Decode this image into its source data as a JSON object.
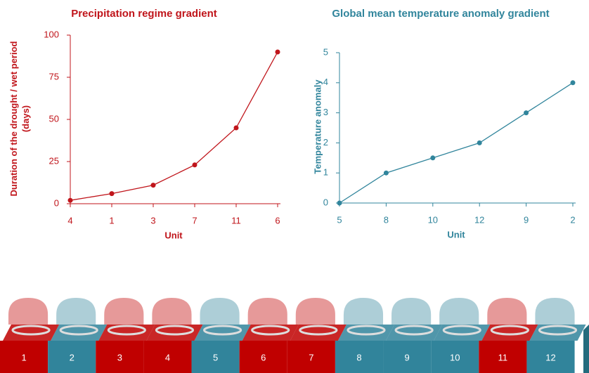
{
  "chart_data": [
    {
      "type": "line",
      "title": "Precipitation regime gradient",
      "x_label": "Unit",
      "y_label": "Duration of the drought / wet period (days)",
      "categories": [
        "4",
        "1",
        "3",
        "7",
        "11",
        "6"
      ],
      "values": [
        2,
        6,
        11,
        23,
        45,
        90
      ],
      "color": "#c0151b",
      "ylim": [
        0,
        100
      ],
      "yticks": [
        0,
        25,
        50,
        75,
        100
      ]
    },
    {
      "type": "line",
      "title": "Global mean temperature anomaly gradient",
      "x_label": "Unit",
      "y_label": "Temperature anomaly",
      "categories": [
        "5",
        "8",
        "10",
        "12",
        "9",
        "2"
      ],
      "values": [
        0,
        1,
        1.5,
        2,
        3,
        4
      ],
      "color": "#31859c",
      "ylim": [
        0,
        5
      ],
      "yticks": [
        0,
        1,
        2,
        3,
        4,
        5
      ]
    }
  ],
  "unit_strip": [
    {
      "label": "1",
      "color": "#c00000"
    },
    {
      "label": "2",
      "color": "#31849b"
    },
    {
      "label": "3",
      "color": "#c00000"
    },
    {
      "label": "4",
      "color": "#c00000"
    },
    {
      "label": "5",
      "color": "#31849b"
    },
    {
      "label": "6",
      "color": "#c00000"
    },
    {
      "label": "7",
      "color": "#c00000"
    },
    {
      "label": "8",
      "color": "#31849b"
    },
    {
      "label": "9",
      "color": "#31849b"
    },
    {
      "label": "10",
      "color": "#31849b"
    },
    {
      "label": "11",
      "color": "#c00000"
    },
    {
      "label": "12",
      "color": "#31849b"
    }
  ]
}
